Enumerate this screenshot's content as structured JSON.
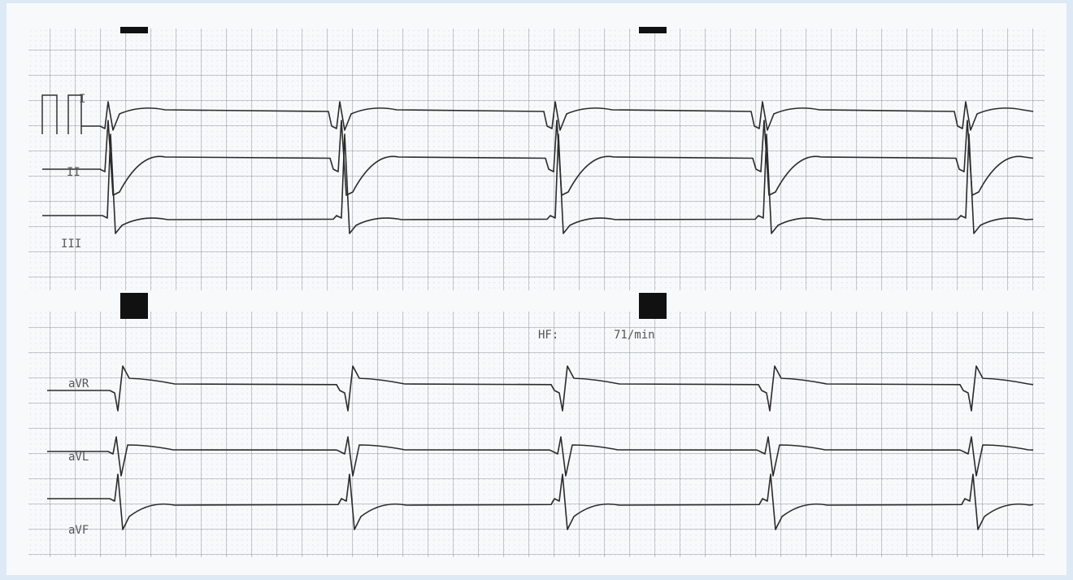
{
  "leads": {
    "top": [
      "I",
      "II",
      "III"
    ],
    "bottom": [
      "aVR",
      "aVL",
      "aVF"
    ]
  },
  "heart_rate": {
    "label": "HF:",
    "value": "71/min"
  }
}
